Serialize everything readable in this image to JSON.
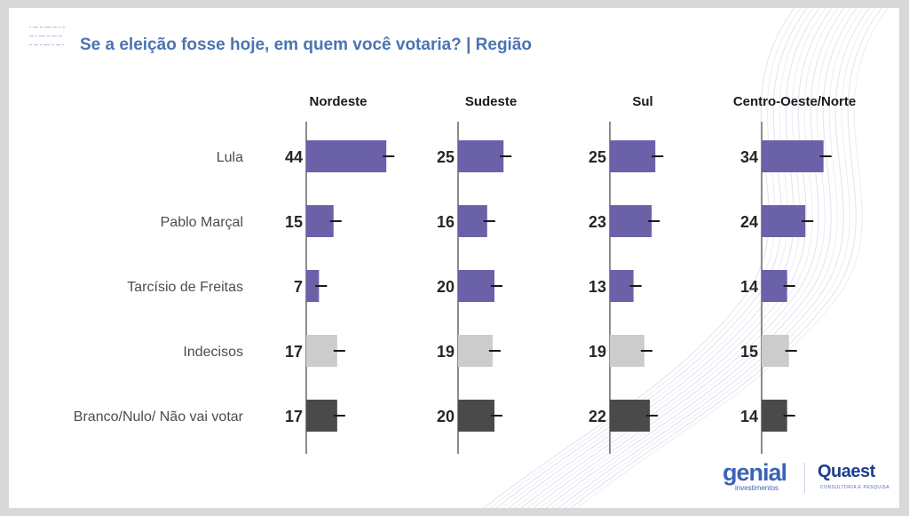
{
  "title": "Se a eleição fosse hoje, em quem você votaria? | Região",
  "logos": {
    "genial": "genial",
    "genial_sub": "investimentos",
    "quaest": "Quaest",
    "quaest_sub": "CONSULTORIA E PESQUISA"
  },
  "colors": {
    "title": "#4a74b3",
    "candidate_bar": "#6a61a8",
    "undecided_bar": "#cccccc",
    "blank_bar": "#4a4a4a",
    "error_bar": "#1a1a1a",
    "axis": "#8c8c8c"
  },
  "chart_data": {
    "type": "bar",
    "orientation": "horizontal",
    "title": "Se a eleição fosse hoje, em quem você votaria? | Região",
    "categories": [
      "Lula",
      "Pablo Marçal",
      "Tarcísio de Freitas",
      "Indecisos",
      "Branco/Nulo/ Não vai votar"
    ],
    "category_colors": [
      "candidate",
      "candidate",
      "candidate",
      "undecided",
      "blank"
    ],
    "series": [
      {
        "name": "Nordeste",
        "values": [
          44,
          15,
          7,
          17,
          17
        ]
      },
      {
        "name": "Sudeste",
        "values": [
          25,
          16,
          20,
          19,
          20
        ]
      },
      {
        "name": "Sul",
        "values": [
          25,
          23,
          13,
          19,
          22
        ]
      },
      {
        "name": "Centro-Oeste/Norte",
        "values": [
          34,
          24,
          14,
          15,
          14
        ]
      }
    ],
    "error_bars": "present",
    "data_labels": true,
    "grid": false
  }
}
